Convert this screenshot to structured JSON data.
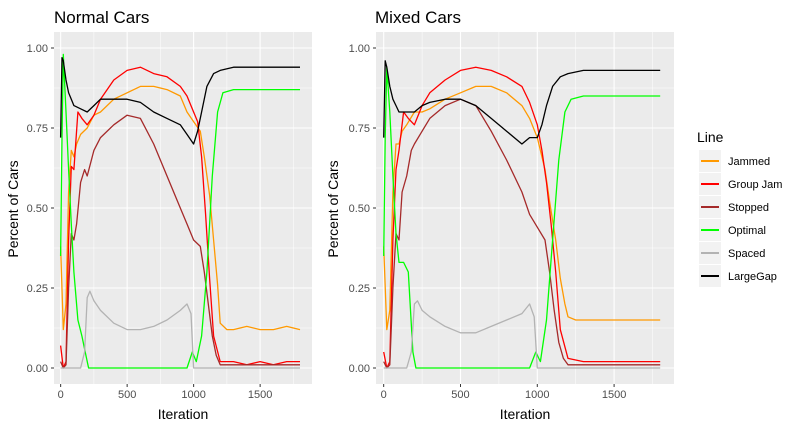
{
  "chart_data": [
    {
      "type": "line",
      "title": "Normal Cars",
      "xlabel": "Iteration",
      "ylabel": "Percent of Cars",
      "xlim": [
        -50,
        1890
      ],
      "ylim": [
        -0.05,
        1.05
      ],
      "x_ticks": [
        0,
        500,
        1000,
        1500
      ],
      "x_tick_labels": [
        "0",
        "500",
        "1000",
        "1500"
      ],
      "y_ticks": [
        0,
        0.25,
        0.5,
        0.75,
        1.0
      ],
      "y_tick_labels": [
        "0.00",
        "0.25",
        "0.50",
        "0.75",
        "1.00"
      ],
      "grid": true,
      "series": [
        {
          "name": "Jammed",
          "x": [
            0,
            20,
            40,
            60,
            80,
            100,
            120,
            150,
            200,
            250,
            300,
            400,
            500,
            600,
            700,
            800,
            900,
            950,
            1000,
            1050,
            1080,
            1120,
            1150,
            1180,
            1200,
            1250,
            1300,
            1400,
            1500,
            1600,
            1700,
            1800
          ],
          "values": [
            0.38,
            0.12,
            0.2,
            0.55,
            0.68,
            0.66,
            0.7,
            0.73,
            0.75,
            0.79,
            0.8,
            0.84,
            0.86,
            0.88,
            0.88,
            0.87,
            0.85,
            0.8,
            0.77,
            0.74,
            0.66,
            0.54,
            0.4,
            0.26,
            0.14,
            0.12,
            0.12,
            0.13,
            0.12,
            0.12,
            0.13,
            0.12
          ]
        },
        {
          "name": "Group Jam",
          "x": [
            0,
            20,
            40,
            60,
            80,
            100,
            130,
            160,
            200,
            250,
            300,
            400,
            500,
            600,
            700,
            800,
            900,
            950,
            1000,
            1030,
            1060,
            1090,
            1120,
            1150,
            1200,
            1300,
            1400,
            1500,
            1600,
            1700,
            1800
          ],
          "values": [
            0.07,
            0.0,
            0.02,
            0.4,
            0.63,
            0.62,
            0.8,
            0.78,
            0.76,
            0.79,
            0.84,
            0.9,
            0.93,
            0.94,
            0.92,
            0.91,
            0.88,
            0.85,
            0.8,
            0.77,
            0.66,
            0.48,
            0.28,
            0.1,
            0.02,
            0.02,
            0.01,
            0.02,
            0.01,
            0.02,
            0.02
          ]
        },
        {
          "name": "Stopped",
          "x": [
            0,
            20,
            40,
            60,
            80,
            100,
            120,
            150,
            180,
            200,
            250,
            300,
            400,
            500,
            600,
            700,
            800,
            900,
            950,
            1000,
            1050,
            1080,
            1110,
            1140,
            1170,
            1200,
            1300,
            1400,
            1500,
            1600,
            1700,
            1800
          ],
          "values": [
            0.02,
            0.0,
            0.01,
            0.25,
            0.42,
            0.4,
            0.45,
            0.58,
            0.62,
            0.6,
            0.68,
            0.72,
            0.76,
            0.79,
            0.78,
            0.7,
            0.6,
            0.5,
            0.45,
            0.4,
            0.38,
            0.3,
            0.2,
            0.1,
            0.04,
            0.01,
            0.01,
            0.01,
            0.01,
            0.01,
            0.01,
            0.01
          ]
        },
        {
          "name": "Optimal",
          "x": [
            0,
            10,
            20,
            40,
            60,
            80,
            100,
            130,
            160,
            190,
            210,
            230,
            300,
            400,
            500,
            600,
            700,
            800,
            900,
            950,
            990,
            1020,
            1060,
            1100,
            1140,
            1180,
            1220,
            1300,
            1400,
            1500,
            1600,
            1700,
            1800
          ],
          "values": [
            0.35,
            0.72,
            0.98,
            0.8,
            0.62,
            0.45,
            0.3,
            0.15,
            0.1,
            0.04,
            0.0,
            0.0,
            0.0,
            0.0,
            0.0,
            0.0,
            0.0,
            0.0,
            0.0,
            0.0,
            0.05,
            0.02,
            0.1,
            0.3,
            0.6,
            0.8,
            0.86,
            0.87,
            0.87,
            0.87,
            0.87,
            0.87,
            0.87
          ]
        },
        {
          "name": "Spaced",
          "x": [
            0,
            50,
            100,
            150,
            180,
            200,
            220,
            250,
            300,
            400,
            500,
            600,
            700,
            800,
            900,
            950,
            980,
            1000,
            1020,
            1050,
            1080,
            1100,
            1150,
            1200,
            1300,
            1400,
            1500,
            1600,
            1700,
            1800
          ],
          "values": [
            0.0,
            0.0,
            0.0,
            0.0,
            0.05,
            0.22,
            0.24,
            0.21,
            0.18,
            0.14,
            0.12,
            0.12,
            0.13,
            0.15,
            0.18,
            0.2,
            0.17,
            0.0,
            0.0,
            0.0,
            0.0,
            0.0,
            0.0,
            0.0,
            0.0,
            0.0,
            0.0,
            0.0,
            0.0,
            0.0
          ]
        },
        {
          "name": "LargeGap",
          "x": [
            0,
            10,
            20,
            40,
            60,
            80,
            100,
            150,
            200,
            250,
            300,
            400,
            500,
            600,
            700,
            800,
            900,
            950,
            1000,
            1030,
            1060,
            1100,
            1150,
            1200,
            1300,
            1400,
            1500,
            1600,
            1700,
            1800
          ],
          "values": [
            0.72,
            0.97,
            0.96,
            0.9,
            0.86,
            0.84,
            0.82,
            0.81,
            0.8,
            0.82,
            0.84,
            0.84,
            0.84,
            0.83,
            0.8,
            0.78,
            0.76,
            0.73,
            0.7,
            0.74,
            0.8,
            0.88,
            0.92,
            0.93,
            0.94,
            0.94,
            0.94,
            0.94,
            0.94,
            0.94
          ]
        }
      ]
    },
    {
      "type": "line",
      "title": "Mixed Cars",
      "xlabel": "Iteration",
      "ylabel": "Percent of Cars",
      "xlim": [
        -50,
        1890
      ],
      "ylim": [
        -0.05,
        1.05
      ],
      "x_ticks": [
        0,
        500,
        1000,
        1500
      ],
      "x_tick_labels": [
        "0",
        "500",
        "1000",
        "1500"
      ],
      "y_ticks": [
        0,
        0.25,
        0.5,
        0.75,
        1.0
      ],
      "y_tick_labels": [
        "0.00",
        "0.25",
        "0.50",
        "0.75",
        "1.00"
      ],
      "grid": true,
      "series": [
        {
          "name": "Jammed",
          "x": [
            0,
            20,
            40,
            60,
            80,
            100,
            120,
            150,
            200,
            250,
            300,
            400,
            500,
            600,
            700,
            800,
            900,
            950,
            1000,
            1050,
            1080,
            1120,
            1150,
            1180,
            1200,
            1250,
            1300,
            1400,
            1500,
            1600,
            1700,
            1800
          ],
          "values": [
            0.38,
            0.12,
            0.18,
            0.55,
            0.7,
            0.7,
            0.74,
            0.76,
            0.8,
            0.8,
            0.81,
            0.84,
            0.86,
            0.88,
            0.88,
            0.86,
            0.82,
            0.78,
            0.72,
            0.62,
            0.52,
            0.4,
            0.28,
            0.2,
            0.16,
            0.15,
            0.15,
            0.15,
            0.15,
            0.15,
            0.15,
            0.15
          ]
        },
        {
          "name": "Group Jam",
          "x": [
            0,
            20,
            40,
            60,
            80,
            100,
            130,
            160,
            200,
            250,
            300,
            400,
            500,
            600,
            700,
            800,
            900,
            950,
            1000,
            1030,
            1060,
            1090,
            1120,
            1150,
            1200,
            1300,
            1400,
            1500,
            1600,
            1700,
            1800
          ],
          "values": [
            0.05,
            0.0,
            0.02,
            0.4,
            0.62,
            0.68,
            0.8,
            0.78,
            0.76,
            0.82,
            0.86,
            0.9,
            0.93,
            0.94,
            0.93,
            0.91,
            0.88,
            0.83,
            0.76,
            0.68,
            0.58,
            0.45,
            0.3,
            0.12,
            0.03,
            0.02,
            0.02,
            0.02,
            0.02,
            0.02,
            0.02
          ]
        },
        {
          "name": "Stopped",
          "x": [
            0,
            20,
            40,
            60,
            80,
            100,
            120,
            150,
            180,
            200,
            250,
            300,
            400,
            500,
            600,
            700,
            800,
            900,
            950,
            1000,
            1050,
            1080,
            1110,
            1140,
            1170,
            1200,
            1300,
            1400,
            1500,
            1600,
            1700,
            1800
          ],
          "values": [
            0.02,
            0.0,
            0.01,
            0.25,
            0.42,
            0.4,
            0.55,
            0.6,
            0.68,
            0.7,
            0.74,
            0.78,
            0.82,
            0.84,
            0.82,
            0.74,
            0.65,
            0.55,
            0.48,
            0.44,
            0.4,
            0.3,
            0.18,
            0.08,
            0.03,
            0.01,
            0.01,
            0.01,
            0.01,
            0.01,
            0.01,
            0.01
          ]
        },
        {
          "name": "Optimal",
          "x": [
            0,
            10,
            20,
            40,
            60,
            80,
            100,
            130,
            160,
            190,
            210,
            230,
            300,
            400,
            500,
            600,
            700,
            800,
            900,
            950,
            990,
            1020,
            1060,
            1100,
            1140,
            1180,
            1220,
            1300,
            1400,
            1500,
            1600,
            1700,
            1800
          ],
          "values": [
            0.35,
            0.72,
            0.94,
            0.8,
            0.6,
            0.42,
            0.33,
            0.33,
            0.3,
            0.05,
            0.0,
            0.0,
            0.0,
            0.0,
            0.0,
            0.0,
            0.0,
            0.0,
            0.0,
            0.0,
            0.05,
            0.02,
            0.15,
            0.4,
            0.65,
            0.8,
            0.84,
            0.85,
            0.85,
            0.85,
            0.85,
            0.85,
            0.85
          ]
        },
        {
          "name": "Spaced",
          "x": [
            0,
            50,
            100,
            150,
            180,
            200,
            220,
            250,
            300,
            400,
            500,
            600,
            700,
            800,
            900,
            950,
            980,
            1000,
            1020,
            1050,
            1080,
            1100,
            1150,
            1200,
            1300,
            1400,
            1500,
            1600,
            1700,
            1800
          ],
          "values": [
            0.0,
            0.0,
            0.0,
            0.0,
            0.05,
            0.2,
            0.21,
            0.18,
            0.16,
            0.13,
            0.11,
            0.11,
            0.13,
            0.15,
            0.17,
            0.2,
            0.16,
            0.0,
            0.0,
            0.0,
            0.0,
            0.0,
            0.0,
            0.0,
            0.0,
            0.0,
            0.0,
            0.0,
            0.0,
            0.0
          ]
        },
        {
          "name": "LargeGap",
          "x": [
            0,
            10,
            20,
            40,
            60,
            80,
            100,
            150,
            200,
            250,
            300,
            400,
            500,
            600,
            700,
            800,
            900,
            950,
            1000,
            1030,
            1060,
            1100,
            1150,
            1200,
            1300,
            1400,
            1500,
            1600,
            1700,
            1800
          ],
          "values": [
            0.72,
            0.96,
            0.94,
            0.88,
            0.84,
            0.82,
            0.8,
            0.8,
            0.8,
            0.82,
            0.83,
            0.84,
            0.84,
            0.82,
            0.78,
            0.74,
            0.7,
            0.72,
            0.72,
            0.76,
            0.82,
            0.88,
            0.91,
            0.92,
            0.93,
            0.93,
            0.93,
            0.93,
            0.93,
            0.93
          ]
        }
      ]
    }
  ],
  "legend": {
    "title": "Line",
    "items": [
      {
        "label": "Jammed",
        "color": "#ff9900"
      },
      {
        "label": "Group Jam",
        "color": "#ff0000"
      },
      {
        "label": "Stopped",
        "color": "#a52a2a"
      },
      {
        "label": "Optimal",
        "color": "#00ff00"
      },
      {
        "label": "Spaced",
        "color": "#b3b3b3"
      },
      {
        "label": "LargeGap",
        "color": "#000000"
      }
    ]
  },
  "colors": {
    "panel_background": "#ebebeb",
    "grid_major": "#ffffff",
    "tick_text": "#4d4d4d"
  }
}
